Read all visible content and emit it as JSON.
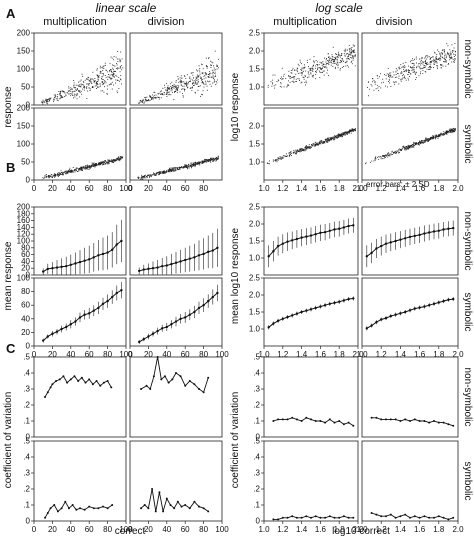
{
  "header": {
    "linear": "linear scale",
    "log": "log scale"
  },
  "columns": {
    "mult": "multiplication",
    "div": "division"
  },
  "rows": {
    "nonsym": "non-symbolic",
    "sym": "symbolic"
  },
  "sections": [
    "A",
    "B",
    "C"
  ],
  "annotation": "error bars: ± 2 SD",
  "chart_data": [
    {
      "id": "A",
      "type": "scatter",
      "linear": {
        "ylabel": "response",
        "xlim": [
          0,
          100
        ],
        "ylim": [
          0,
          200
        ],
        "xticks": [
          "0",
          "20",
          "40",
          "60",
          "80",
          "100"
        ],
        "yticks": [
          "0",
          "50",
          "100",
          "150",
          "200"
        ],
        "xticks_div": [
          "0",
          "20",
          "40",
          "60",
          "80"
        ]
      },
      "log": {
        "ylabel": "log10 response",
        "xlim": [
          1.0,
          2.0
        ],
        "ylim": [
          0.5,
          2.5
        ],
        "xticks": [
          "1.0",
          "1.2",
          "1.4",
          "1.6",
          "1.8",
          "2.0"
        ],
        "yticks": [
          "1.0",
          "1.5",
          "2.0"
        ],
        "yticks_top": [
          "1.0",
          "1.5",
          "2.0",
          "2.5"
        ]
      },
      "series": [
        {
          "name": "non-symbolic multiplication",
          "relation": "y ≈ x (high spread)",
          "x_range": [
            10,
            95
          ]
        },
        {
          "name": "non-symbolic division",
          "relation": "y ≈ x (high spread)",
          "x_range": [
            10,
            95
          ]
        },
        {
          "name": "symbolic multiplication",
          "relation": "y ≈ 0.65x (low spread)",
          "x_range": [
            10,
            95
          ]
        },
        {
          "name": "symbolic division",
          "relation": "y ≈ 0.65x (low spread)",
          "x_range": [
            10,
            95
          ]
        }
      ]
    },
    {
      "id": "B",
      "type": "line",
      "error_bars": "± 2 SD",
      "linear": {
        "ylabel": "mean response",
        "xlim": [
          0,
          100
        ],
        "ylim": [
          0,
          200
        ],
        "xticks": [
          "0",
          "20",
          "40",
          "60",
          "80",
          "100"
        ],
        "yticks": [
          "0",
          "20",
          "40",
          "60",
          "80",
          "100",
          "120",
          "140",
          "160",
          "180",
          "200"
        ],
        "yticks_sym": [
          "0",
          "20",
          "40",
          "60",
          "80",
          "100"
        ]
      },
      "log": {
        "ylabel": "mean log10 response",
        "xlim": [
          1.0,
          2.0
        ],
        "ylim": [
          0.5,
          2.5
        ],
        "xticks": [
          "1.0",
          "1.2",
          "1.4",
          "1.6",
          "1.8",
          "2.0"
        ],
        "yticks": [
          "1.0",
          "1.5",
          "2.0",
          "2.5"
        ]
      },
      "series": [
        {
          "name": "non-symbolic multiplication (linear)",
          "x": [
            10,
            15,
            20,
            25,
            30,
            35,
            40,
            45,
            50,
            55,
            60,
            65,
            70,
            75,
            80,
            85,
            90,
            95
          ],
          "y": [
            10,
            18,
            20,
            22,
            24,
            26,
            30,
            34,
            38,
            42,
            46,
            52,
            58,
            62,
            66,
            74,
            90,
            100
          ],
          "sd2": [
            10,
            15,
            18,
            22,
            25,
            28,
            30,
            32,
            35,
            38,
            40,
            42,
            45,
            48,
            50,
            52,
            58,
            62
          ]
        },
        {
          "name": "non-symbolic division (linear)",
          "x": [
            10,
            15,
            20,
            25,
            30,
            35,
            40,
            45,
            50,
            55,
            60,
            65,
            70,
            75,
            80,
            85,
            90,
            95
          ],
          "y": [
            12,
            16,
            18,
            20,
            22,
            26,
            28,
            32,
            36,
            40,
            44,
            48,
            52,
            58,
            62,
            68,
            72,
            80
          ],
          "sd2": [
            10,
            14,
            16,
            20,
            22,
            24,
            27,
            30,
            32,
            34,
            36,
            38,
            40,
            44,
            46,
            48,
            52,
            56
          ]
        },
        {
          "name": "symbolic multiplication (linear)",
          "x": [
            10,
            15,
            20,
            25,
            30,
            35,
            40,
            45,
            50,
            55,
            60,
            65,
            70,
            75,
            80,
            85,
            90,
            95
          ],
          "y": [
            8,
            14,
            18,
            21,
            25,
            28,
            32,
            36,
            42,
            46,
            48,
            52,
            56,
            62,
            66,
            72,
            78,
            82
          ],
          "sd2": [
            3,
            3,
            4,
            4,
            5,
            5,
            6,
            6,
            7,
            7,
            8,
            8,
            9,
            9,
            10,
            10,
            11,
            12
          ]
        },
        {
          "name": "symbolic division (linear)",
          "x": [
            10,
            15,
            20,
            25,
            30,
            35,
            40,
            45,
            50,
            55,
            60,
            65,
            70,
            75,
            80,
            85,
            90,
            95
          ],
          "y": [
            6,
            10,
            14,
            18,
            22,
            26,
            28,
            32,
            36,
            40,
            42,
            46,
            50,
            56,
            60,
            66,
            72,
            78
          ],
          "sd2": [
            3,
            3,
            4,
            4,
            5,
            5,
            6,
            6,
            7,
            7,
            8,
            8,
            9,
            9,
            10,
            10,
            11,
            12
          ]
        },
        {
          "name": "non-symbolic multiplication (log)",
          "x": [
            1.05,
            1.1,
            1.15,
            1.2,
            1.25,
            1.3,
            1.35,
            1.4,
            1.45,
            1.5,
            1.55,
            1.6,
            1.65,
            1.7,
            1.75,
            1.8,
            1.85,
            1.9,
            1.95
          ],
          "y": [
            1.05,
            1.2,
            1.35,
            1.42,
            1.48,
            1.52,
            1.56,
            1.6,
            1.63,
            1.66,
            1.7,
            1.74,
            1.76,
            1.8,
            1.84,
            1.86,
            1.9,
            1.94,
            1.96
          ],
          "sd2": [
            0.32,
            0.3,
            0.28,
            0.28,
            0.27,
            0.26,
            0.26,
            0.25,
            0.25,
            0.24,
            0.24,
            0.24,
            0.24,
            0.23,
            0.23,
            0.23,
            0.22,
            0.22,
            0.22
          ]
        },
        {
          "name": "non-symbolic division (log)",
          "x": [
            1.05,
            1.1,
            1.15,
            1.2,
            1.25,
            1.3,
            1.35,
            1.4,
            1.45,
            1.5,
            1.55,
            1.6,
            1.65,
            1.7,
            1.75,
            1.8,
            1.85,
            1.9,
            1.95
          ],
          "y": [
            1.05,
            1.15,
            1.28,
            1.35,
            1.42,
            1.46,
            1.5,
            1.54,
            1.58,
            1.62,
            1.65,
            1.68,
            1.72,
            1.75,
            1.78,
            1.8,
            1.84,
            1.86,
            1.88
          ],
          "sd2": [
            0.32,
            0.3,
            0.28,
            0.28,
            0.27,
            0.26,
            0.26,
            0.25,
            0.25,
            0.24,
            0.24,
            0.24,
            0.24,
            0.23,
            0.23,
            0.23,
            0.22,
            0.22,
            0.22
          ]
        },
        {
          "name": "symbolic multiplication (log)",
          "x": [
            1.05,
            1.1,
            1.15,
            1.2,
            1.25,
            1.3,
            1.35,
            1.4,
            1.45,
            1.5,
            1.55,
            1.6,
            1.65,
            1.7,
            1.75,
            1.8,
            1.85,
            1.9,
            1.95
          ],
          "y": [
            1.05,
            1.16,
            1.24,
            1.3,
            1.35,
            1.4,
            1.45,
            1.5,
            1.54,
            1.58,
            1.62,
            1.66,
            1.7,
            1.74,
            1.77,
            1.8,
            1.84,
            1.88,
            1.9
          ],
          "sd2": [
            0.06,
            0.06,
            0.06,
            0.06,
            0.06,
            0.06,
            0.06,
            0.06,
            0.06,
            0.06,
            0.06,
            0.06,
            0.06,
            0.06,
            0.06,
            0.06,
            0.06,
            0.06,
            0.06
          ]
        },
        {
          "name": "symbolic division (log)",
          "x": [
            1.05,
            1.1,
            1.15,
            1.2,
            1.25,
            1.3,
            1.35,
            1.4,
            1.45,
            1.5,
            1.55,
            1.6,
            1.65,
            1.7,
            1.75,
            1.8,
            1.85,
            1.9,
            1.95
          ],
          "y": [
            1.02,
            1.1,
            1.2,
            1.28,
            1.32,
            1.38,
            1.42,
            1.46,
            1.5,
            1.55,
            1.6,
            1.63,
            1.66,
            1.7,
            1.74,
            1.78,
            1.82,
            1.86,
            1.88
          ],
          "sd2": [
            0.06,
            0.06,
            0.06,
            0.06,
            0.06,
            0.06,
            0.06,
            0.06,
            0.06,
            0.06,
            0.06,
            0.06,
            0.06,
            0.06,
            0.06,
            0.06,
            0.06,
            0.06,
            0.06
          ]
        }
      ]
    },
    {
      "id": "C",
      "type": "line",
      "linear": {
        "ylabel": "coefficient of variation",
        "xlabel": "correct",
        "xlim": [
          0,
          100
        ],
        "ylim": [
          0,
          0.5
        ],
        "xticks": [
          "0",
          "20",
          "40",
          "60",
          "80",
          "100"
        ],
        "yticks": [
          "0",
          ".1",
          ".2",
          ".3",
          ".4",
          ".5"
        ]
      },
      "log": {
        "ylabel": "coefficient of variation",
        "xlabel": "log10 correct",
        "xlim": [
          1.0,
          2.0
        ],
        "ylim": [
          0,
          0.5
        ],
        "xticks": [
          "1.0",
          "1.2",
          "1.4",
          "1.6",
          "1.8",
          "2.0"
        ],
        "yticks": [
          "0",
          ".1",
          ".2",
          ".3",
          ".4",
          ".5"
        ]
      },
      "series": [
        {
          "name": "non-symbolic multiplication (linear)",
          "x": [
            12,
            15,
            18,
            20,
            24,
            28,
            32,
            36,
            40,
            44,
            48,
            52,
            56,
            60,
            64,
            68,
            72,
            76,
            80,
            84
          ],
          "y": [
            0.25,
            0.28,
            0.31,
            0.33,
            0.35,
            0.36,
            0.38,
            0.34,
            0.36,
            0.38,
            0.35,
            0.37,
            0.34,
            0.36,
            0.33,
            0.35,
            0.32,
            0.34,
            0.35,
            0.31
          ]
        },
        {
          "name": "non-symbolic division (linear)",
          "x": [
            12,
            18,
            22,
            26,
            30,
            34,
            38,
            42,
            46,
            50,
            55,
            60,
            65,
            70,
            75,
            80,
            85
          ],
          "y": [
            0.3,
            0.32,
            0.3,
            0.38,
            0.5,
            0.36,
            0.38,
            0.34,
            0.36,
            0.4,
            0.38,
            0.32,
            0.35,
            0.33,
            0.3,
            0.28,
            0.37
          ]
        },
        {
          "name": "symbolic multiplication (linear)",
          "x": [
            12,
            15,
            18,
            22,
            26,
            30,
            34,
            38,
            42,
            46,
            50,
            55,
            60,
            65,
            70,
            75,
            80,
            85
          ],
          "y": [
            0.02,
            0.05,
            0.08,
            0.1,
            0.06,
            0.08,
            0.12,
            0.08,
            0.1,
            0.07,
            0.08,
            0.07,
            0.09,
            0.08,
            0.08,
            0.09,
            0.08,
            0.1
          ]
        },
        {
          "name": "symbolic division (linear)",
          "x": [
            12,
            16,
            20,
            24,
            28,
            32,
            36,
            40,
            44,
            48,
            52,
            56,
            60,
            65,
            70,
            75,
            80,
            85
          ],
          "y": [
            0.08,
            0.1,
            0.08,
            0.2,
            0.06,
            0.18,
            0.06,
            0.14,
            0.1,
            0.08,
            0.12,
            0.09,
            0.1,
            0.08,
            0.12,
            0.09,
            0.08,
            0.06
          ]
        },
        {
          "name": "non-symbolic multiplication (log)",
          "x": [
            1.1,
            1.15,
            1.2,
            1.25,
            1.3,
            1.35,
            1.4,
            1.45,
            1.5,
            1.55,
            1.6,
            1.65,
            1.7,
            1.75,
            1.8,
            1.85,
            1.9,
            1.95
          ],
          "y": [
            0.1,
            0.11,
            0.11,
            0.11,
            0.12,
            0.11,
            0.1,
            0.12,
            0.11,
            0.1,
            0.1,
            0.09,
            0.11,
            0.09,
            0.1,
            0.08,
            0.09,
            0.07
          ]
        },
        {
          "name": "non-symbolic division (log)",
          "x": [
            1.1,
            1.15,
            1.2,
            1.25,
            1.3,
            1.35,
            1.4,
            1.45,
            1.5,
            1.55,
            1.6,
            1.65,
            1.7,
            1.75,
            1.8,
            1.85,
            1.9,
            1.95
          ],
          "y": [
            0.12,
            0.12,
            0.11,
            0.11,
            0.11,
            0.11,
            0.1,
            0.11,
            0.1,
            0.11,
            0.1,
            0.1,
            0.09,
            0.1,
            0.09,
            0.09,
            0.08,
            0.07
          ]
        },
        {
          "name": "symbolic multiplication (log)",
          "x": [
            1.1,
            1.15,
            1.2,
            1.25,
            1.3,
            1.35,
            1.4,
            1.45,
            1.5,
            1.55,
            1.6,
            1.65,
            1.7,
            1.75,
            1.8,
            1.85,
            1.9,
            1.95
          ],
          "y": [
            0.01,
            0.01,
            0.02,
            0.02,
            0.03,
            0.02,
            0.02,
            0.03,
            0.02,
            0.03,
            0.02,
            0.02,
            0.03,
            0.02,
            0.02,
            0.03,
            0.02,
            0.02
          ]
        },
        {
          "name": "symbolic division (log)",
          "x": [
            1.1,
            1.15,
            1.2,
            1.25,
            1.3,
            1.35,
            1.4,
            1.45,
            1.5,
            1.55,
            1.6,
            1.65,
            1.7,
            1.75,
            1.8,
            1.85,
            1.9,
            1.95
          ],
          "y": [
            0.05,
            0.04,
            0.03,
            0.03,
            0.04,
            0.02,
            0.03,
            0.04,
            0.02,
            0.03,
            0.02,
            0.03,
            0.02,
            0.02,
            0.03,
            0.02,
            0.01,
            0.02
          ]
        }
      ]
    }
  ]
}
